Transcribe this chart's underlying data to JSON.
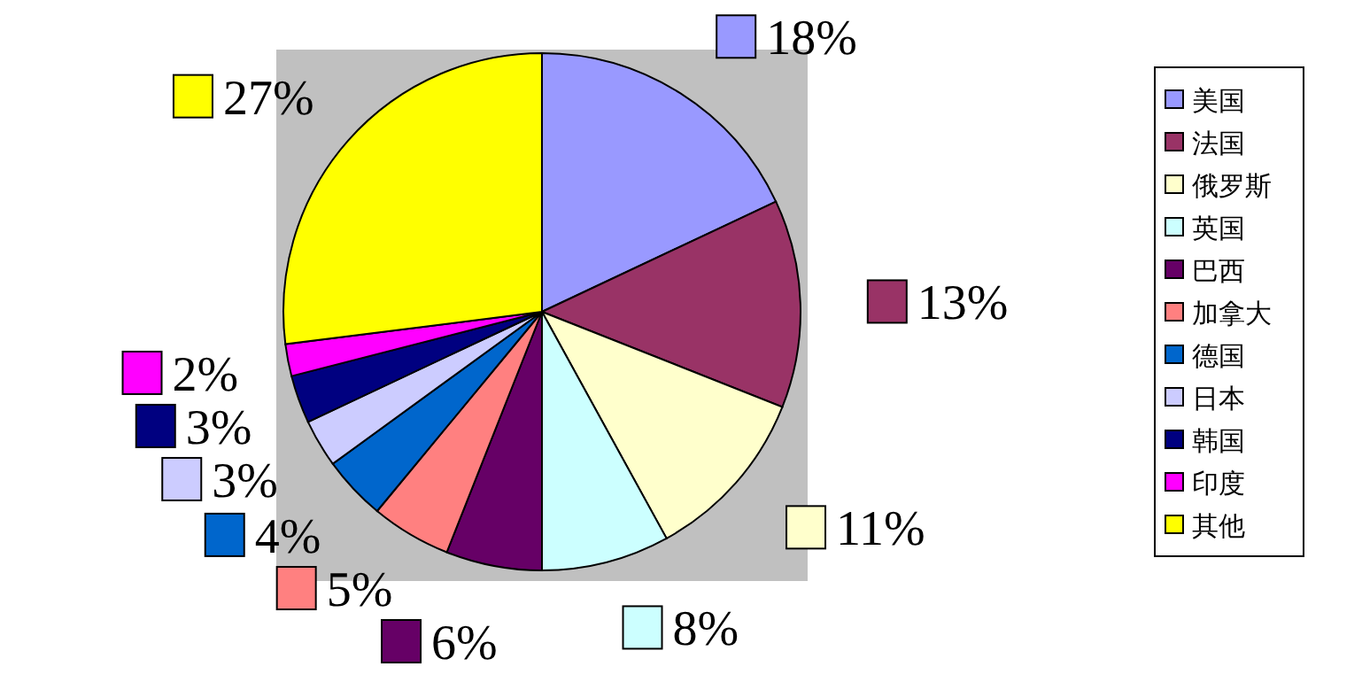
{
  "chart_data": {
    "type": "pie",
    "categories": [
      "美国",
      "法国",
      "俄罗斯",
      "英国",
      "巴西",
      "加拿大",
      "德国",
      "日本",
      "韩国",
      "印度",
      "其他"
    ],
    "values": [
      18,
      13,
      11,
      8,
      6,
      5,
      4,
      3,
      3,
      2,
      27
    ],
    "colors": [
      "#9999ff",
      "#993366",
      "#ffffcc",
      "#ccffff",
      "#660066",
      "#ff8080",
      "#0066cc",
      "#ccccff",
      "#000080",
      "#ff00ff",
      "#ffff00"
    ],
    "value_labels": [
      "18%",
      "13%",
      "11%",
      "8%",
      "6%",
      "5%",
      "4%",
      "3%",
      "3%",
      "2%",
      "27%"
    ],
    "legend": "right"
  }
}
